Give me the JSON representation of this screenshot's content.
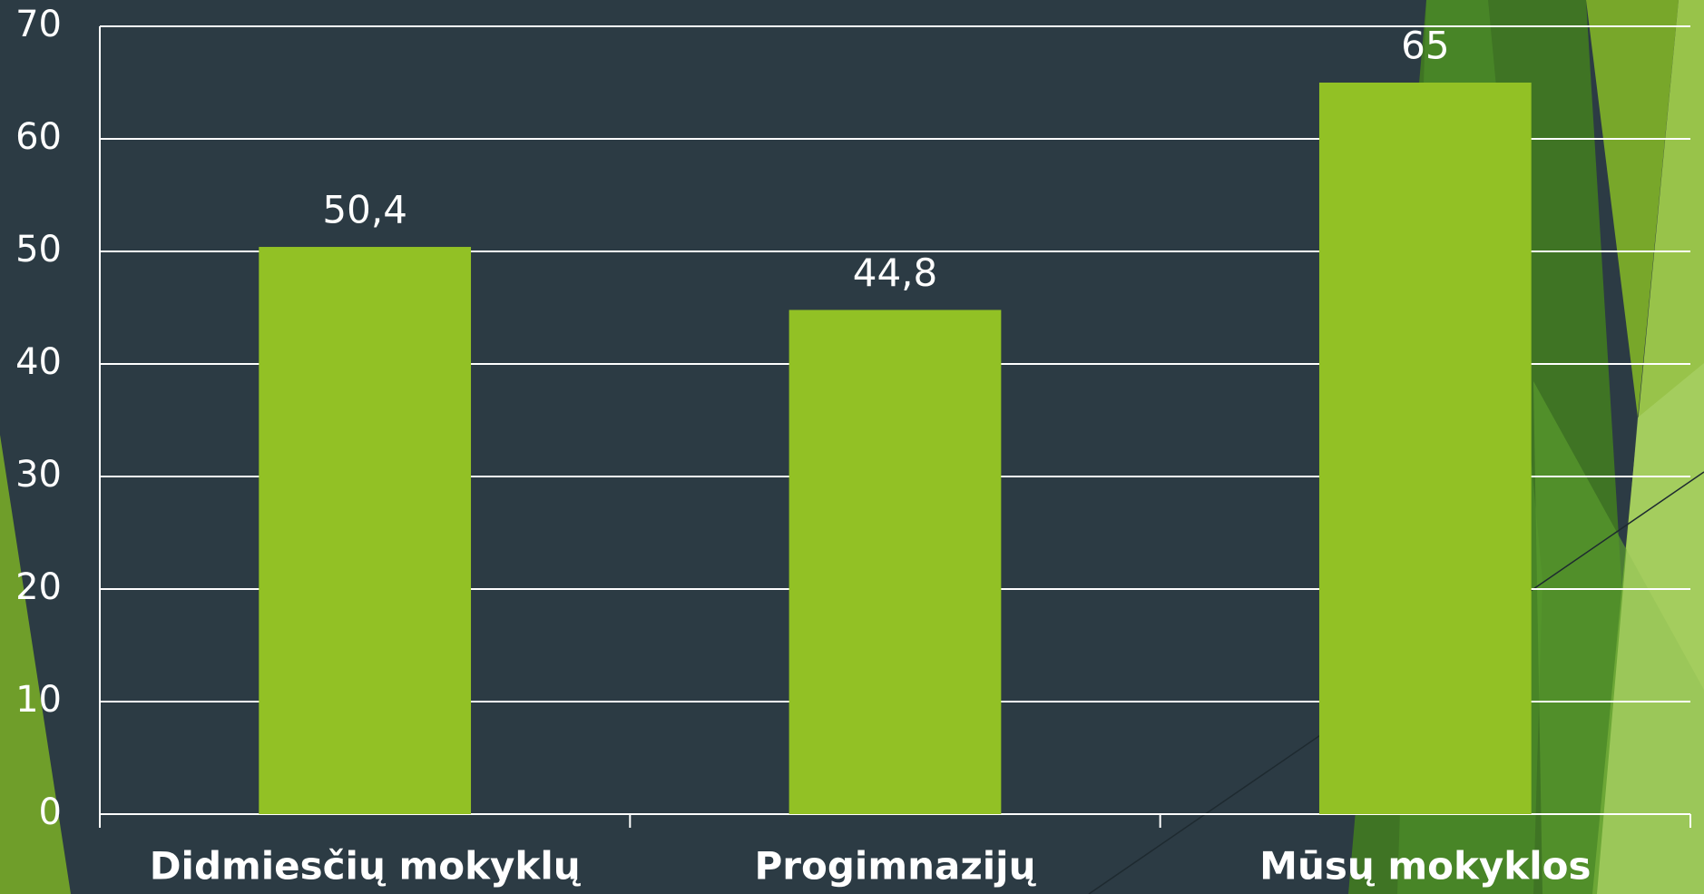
{
  "chart_data": {
    "type": "bar",
    "categories": [
      "Didmiesčių mokyklų",
      "Progimnazijų",
      "Mūsų mokyklos"
    ],
    "values": [
      50.4,
      44.8,
      65
    ],
    "value_labels": [
      "50,4",
      "44,8",
      "65"
    ],
    "color": "#92c125",
    "ylim": [
      0,
      70
    ],
    "yticks": [
      0,
      10,
      20,
      30,
      40,
      50,
      60,
      70
    ],
    "grid": true
  }
}
